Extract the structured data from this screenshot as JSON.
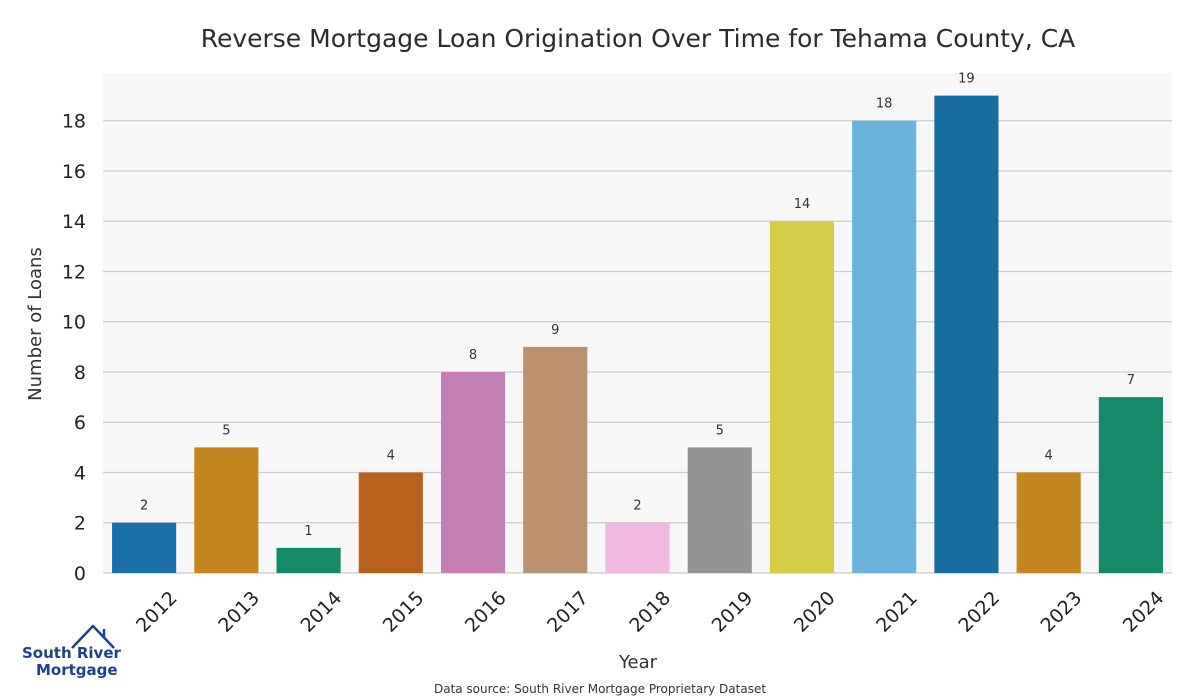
{
  "chart_data": {
    "type": "bar",
    "title": "Reverse Mortgage Loan Origination Over Time for Tehama County, CA",
    "xlabel": "Year",
    "ylabel": "Number of Loans",
    "categories": [
      "2012",
      "2013",
      "2014",
      "2015",
      "2016",
      "2017",
      "2018",
      "2019",
      "2020",
      "2021",
      "2022",
      "2023",
      "2024"
    ],
    "values": [
      2,
      5,
      1,
      4,
      8,
      9,
      2,
      5,
      14,
      18,
      19,
      4,
      7
    ],
    "colors": [
      "#1a70a8",
      "#c4861e",
      "#148a6a",
      "#b9601d",
      "#c27fb5",
      "#bc9170",
      "#f1b8e1",
      "#949494",
      "#d6cc48",
      "#69b2dc",
      "#176c9f",
      "#c4861e",
      "#148a6a"
    ],
    "ylim": [
      0,
      19.9
    ],
    "yticks": [
      0,
      2,
      4,
      6,
      8,
      10,
      12,
      14,
      16,
      18
    ],
    "grid": true,
    "background": "#f7f7f7",
    "source": "Data source: South River Mortgage Proprietary Dataset"
  },
  "logo": {
    "line1": "South River",
    "line2": "Mortgage",
    "color": "#1f3f8f"
  }
}
